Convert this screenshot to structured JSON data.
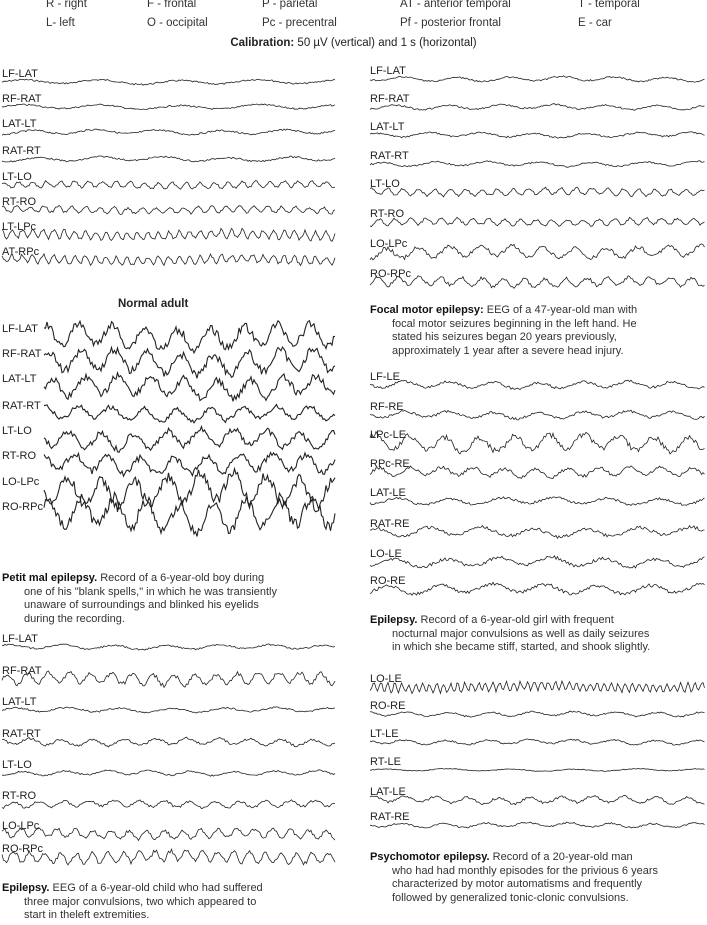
{
  "abbreviations": [
    {
      "text": "R - right"
    },
    {
      "text": "F - frontal"
    },
    {
      "text": "P - parietal"
    },
    {
      "text": "AT - anterior temporal"
    },
    {
      "text": "T - temporal"
    },
    {
      "text": "L- left"
    },
    {
      "text": "O - occipital"
    },
    {
      "text": "Pc - precentral"
    },
    {
      "text": "Pf - posterior frontal"
    },
    {
      "text": "E - car"
    }
  ],
  "calibration": {
    "label": "Calibration:",
    "text": " 50 µV (vertical) and 1 s (horizontal)"
  },
  "panels": [
    {
      "id": "normal",
      "channels": [
        "LF-LAT",
        "RF-RAT",
        "LAT-LT",
        "RAT-RT",
        "LT-LO",
        "RT-RO",
        "LT-LPc",
        "AT-RPc"
      ],
      "title": "Normal adult"
    },
    {
      "id": "petit-mal",
      "channels": [
        "LF-LAT",
        "RF-RAT",
        "LAT-LT",
        "RAT-RT",
        "LT-LO",
        "RT-RO",
        "LO-LPc",
        "RO-RPc"
      ],
      "caption_title": "Petit mal epilepsy.",
      "caption_lines": [
        " Record of a 6-year-old boy during",
        "one of his \"blank spells,\" in which he was transiently",
        "unaware of surroundings and blinked his eyelids",
        "during the recording."
      ]
    },
    {
      "id": "epilepsy-child",
      "channels": [
        "LF-LAT",
        "RF-RAT",
        "LAT-LT",
        "RAT-RT",
        "LT-LO",
        "RT-RO",
        "LO-LPc",
        "RO-RPc"
      ],
      "caption_title": "Epilepsy.",
      "caption_lines": [
        " EEG of a 6-year-old child who had suffered",
        "three major convulsions, two which appeared to",
        "start in theleft extremities."
      ]
    },
    {
      "id": "focal-motor",
      "channels": [
        "LF-LAT",
        "RF-RAT",
        "LAT-LT",
        "RAT-RT",
        "LT-LO",
        "RT-RO",
        "LO-LPc",
        "RO-RPc"
      ],
      "caption_title": "Focal motor epilepsy:",
      "caption_lines": [
        " EEG of a 47-year-old man with",
        "focal motor seizures beginning in the left hand. He",
        "stated his seizures began 20 years previously,",
        "approximately 1 year after a severe head injury."
      ]
    },
    {
      "id": "epilepsy-girl",
      "channels": [
        "LF-LE",
        "RF-RE",
        "LPc-LE",
        "RPc-RE",
        "LAT-LE",
        "RAT-RE",
        "LO-LE",
        "RO-RE"
      ],
      "caption_title": "Epilepsy.",
      "caption_lines": [
        " Record of a 6-year-old girl with frequent",
        "nocturnal major convulsions as well as daily seizures",
        "in which she became stiff, started, and shook slightly."
      ]
    },
    {
      "id": "psychomotor",
      "channels": [
        "LO-LE",
        "RO-RE",
        "LT-LE",
        "RT-LE",
        "LAT-LE",
        "RAT-RE"
      ],
      "caption_title": "Psychomotor epilepsy.",
      "caption_lines": [
        " Record of a 20-year-old man",
        "who had had monthly episodes for the privious 6 years",
        "characterized by motor automatisms and frequently",
        "followed by generalized tonic-clonic convulsions."
      ]
    }
  ]
}
